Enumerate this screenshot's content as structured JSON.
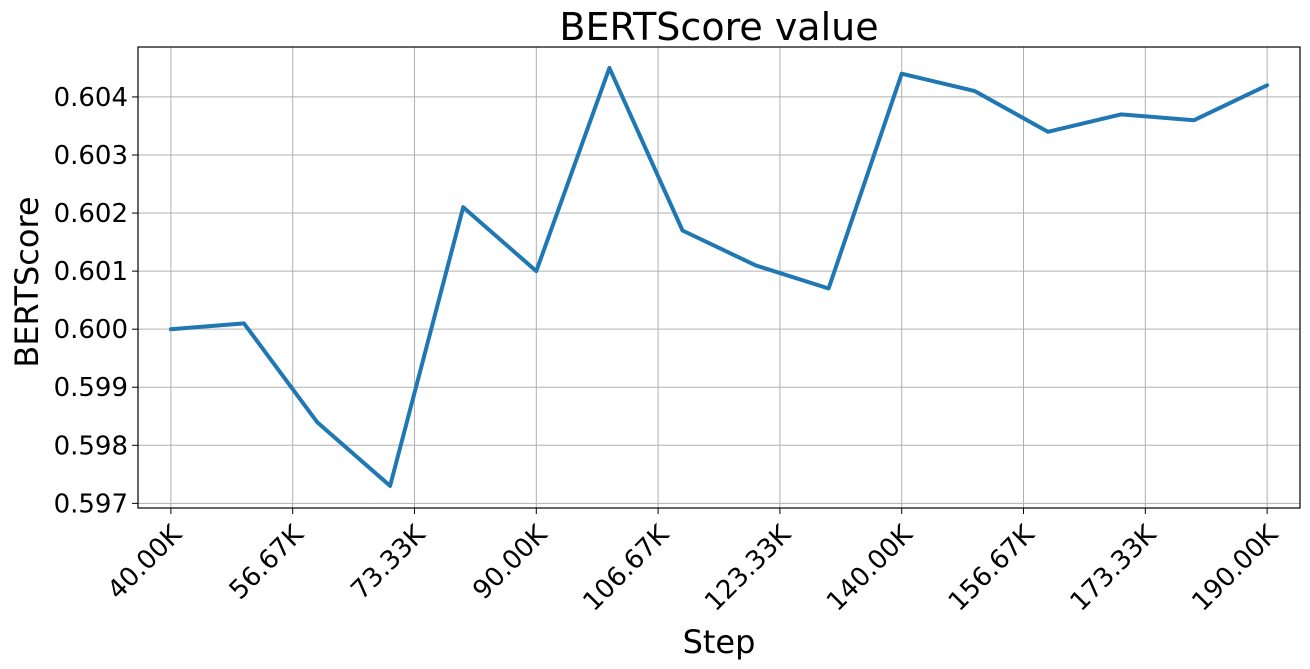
{
  "chart_data": {
    "type": "line",
    "title": "BERTScore value",
    "xlabel": "Step",
    "ylabel": "BERTScore",
    "grid": true,
    "xlim": [
      35500,
      194500
    ],
    "ylim": [
      0.59692,
      0.60486
    ],
    "x_ticks": [
      {
        "value": 40000,
        "label": "40.00K"
      },
      {
        "value": 56666.67,
        "label": "56.67K"
      },
      {
        "value": 73333.33,
        "label": "73.33K"
      },
      {
        "value": 90000,
        "label": "90.00K"
      },
      {
        "value": 106666.67,
        "label": "106.67K"
      },
      {
        "value": 123333.33,
        "label": "123.33K"
      },
      {
        "value": 140000,
        "label": "140.00K"
      },
      {
        "value": 156666.67,
        "label": "156.67K"
      },
      {
        "value": 173333.33,
        "label": "173.33K"
      },
      {
        "value": 190000,
        "label": "190.00K"
      }
    ],
    "y_ticks": [
      {
        "value": 0.597,
        "label": "0.597"
      },
      {
        "value": 0.598,
        "label": "0.598"
      },
      {
        "value": 0.599,
        "label": "0.599"
      },
      {
        "value": 0.6,
        "label": "0.600"
      },
      {
        "value": 0.601,
        "label": "0.601"
      },
      {
        "value": 0.602,
        "label": "0.602"
      },
      {
        "value": 0.603,
        "label": "0.603"
      },
      {
        "value": 0.604,
        "label": "0.604"
      }
    ],
    "series": [
      {
        "color": "#1f77b4",
        "x": [
          40000,
          50000,
          60000,
          70000,
          80000,
          90000,
          100000,
          110000,
          120000,
          130000,
          140000,
          150000,
          160000,
          170000,
          180000,
          190000
        ],
        "y": [
          0.6,
          0.6001,
          0.5984,
          0.5973,
          0.6021,
          0.601,
          0.6045,
          0.6017,
          0.6011,
          0.6007,
          0.6044,
          0.6041,
          0.6034,
          0.6037,
          0.6036,
          0.6042
        ]
      }
    ]
  }
}
